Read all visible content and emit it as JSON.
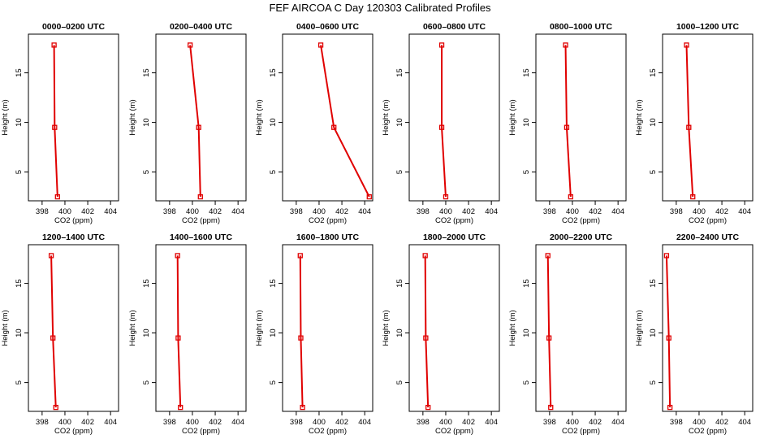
{
  "title": "FEF AIRCOA C  Day 120303  Calibrated Profiles",
  "colors": {
    "line": "#e00000",
    "axis": "#000000",
    "background": "#ffffff"
  },
  "chart_data": {
    "type": "line",
    "xlabel": "CO2 (ppm)",
    "ylabel": "Height (m)",
    "xlim": [
      396.8,
      404.7
    ],
    "ylim": [
      2.1,
      18.9
    ],
    "xticks": [
      398,
      400,
      402,
      404
    ],
    "yticks": [
      5,
      10,
      15
    ],
    "heights": [
      2.5,
      9.5,
      17.8
    ],
    "panels": [
      {
        "title": "0000–0200 UTC",
        "co2": [
          399.35,
          399.1,
          399.05
        ]
      },
      {
        "title": "0200–0400 UTC",
        "co2": [
          400.7,
          400.55,
          399.8
        ]
      },
      {
        "title": "0400–0600 UTC",
        "co2": [
          404.4,
          401.3,
          400.15
        ]
      },
      {
        "title": "0600–0800 UTC",
        "co2": [
          400.0,
          399.65,
          399.65
        ]
      },
      {
        "title": "0800–1000 UTC",
        "co2": [
          399.85,
          399.5,
          399.4
        ]
      },
      {
        "title": "1000–1200 UTC",
        "co2": [
          399.45,
          399.1,
          398.9
        ]
      },
      {
        "title": "1200–1400 UTC",
        "co2": [
          399.2,
          398.95,
          398.8
        ]
      },
      {
        "title": "1400–1600 UTC",
        "co2": [
          398.95,
          398.75,
          398.7
        ]
      },
      {
        "title": "1600–1800 UTC",
        "co2": [
          398.55,
          398.4,
          398.35
        ]
      },
      {
        "title": "1800–2000 UTC",
        "co2": [
          398.45,
          398.25,
          398.2
        ]
      },
      {
        "title": "2000–2200 UTC",
        "co2": [
          398.1,
          397.95,
          397.85
        ]
      },
      {
        "title": "2200–2400 UTC",
        "co2": [
          397.45,
          397.35,
          397.15
        ]
      }
    ]
  }
}
